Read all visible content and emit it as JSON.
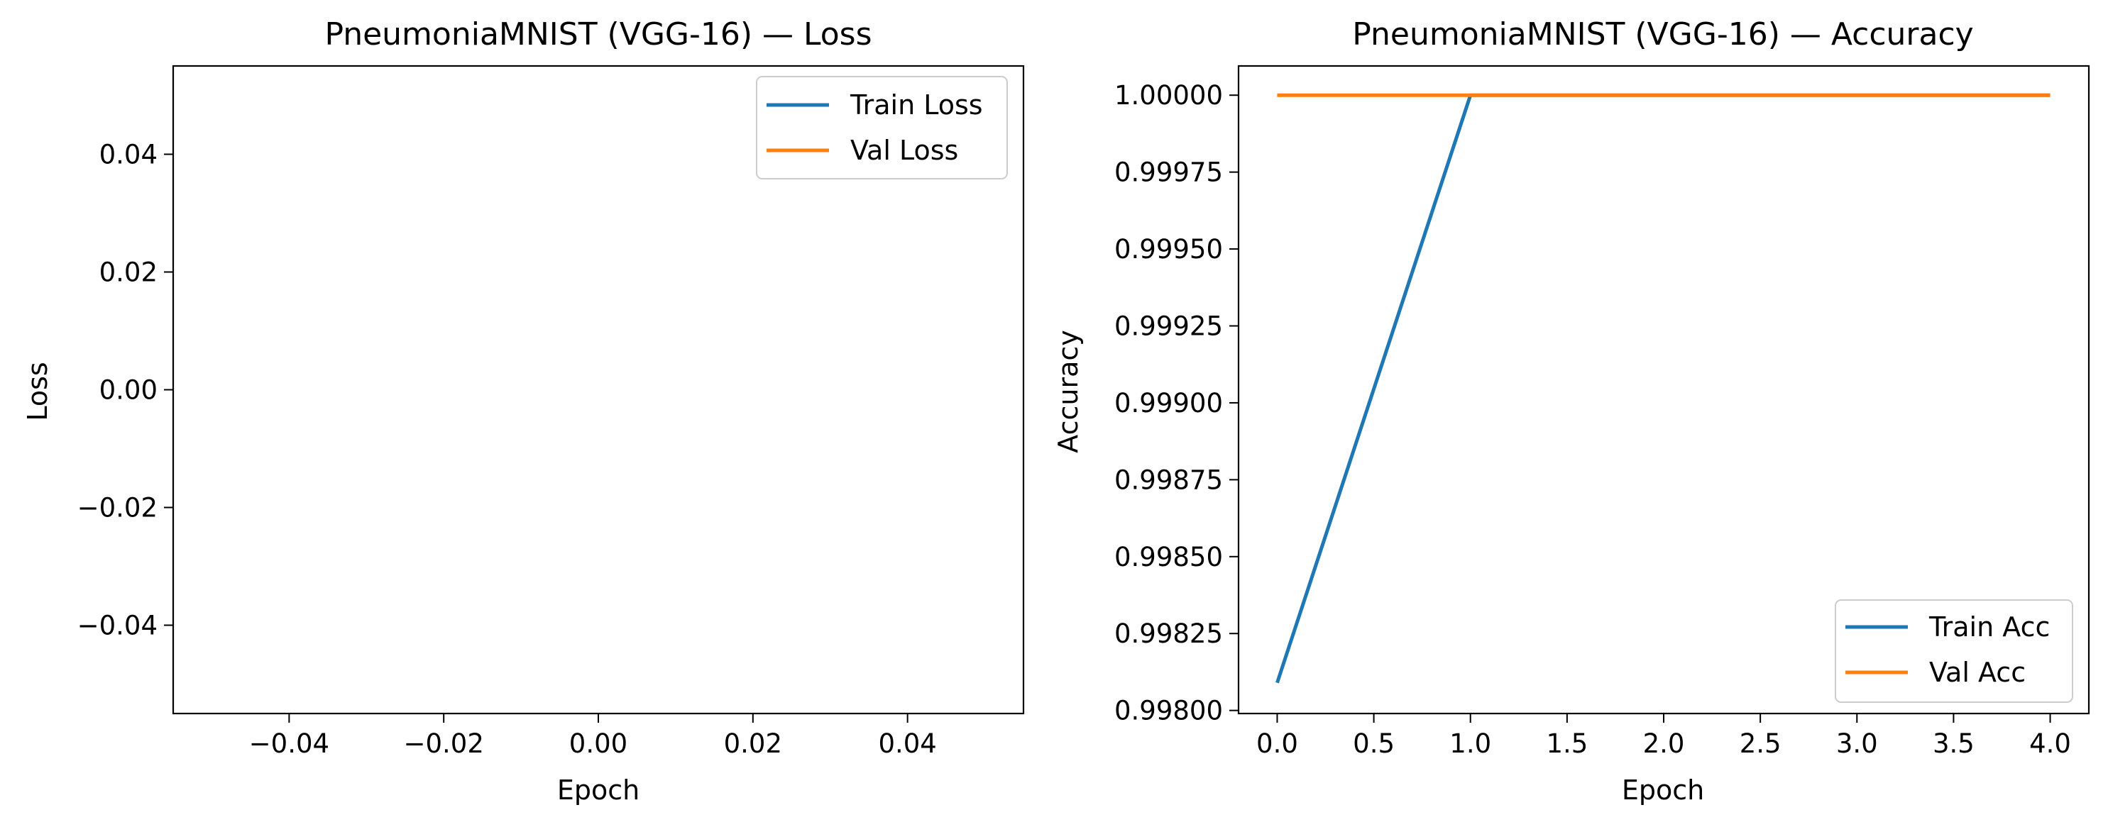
{
  "chart_data": [
    {
      "type": "line",
      "title": "PneumoniaMNIST (VGG-16) — Loss",
      "xlabel": "Epoch",
      "ylabel": "Loss",
      "xlim": [
        -0.055,
        0.055
      ],
      "ylim": [
        -0.055,
        0.055
      ],
      "x_ticks": [
        -0.04,
        -0.02,
        0.0,
        0.02,
        0.04
      ],
      "x_tick_labels": [
        "−0.04",
        "−0.02",
        "0.00",
        "0.02",
        "0.04"
      ],
      "y_ticks": [
        -0.04,
        -0.02,
        0.0,
        0.02,
        0.04
      ],
      "y_tick_labels": [
        "−0.04",
        "−0.02",
        "0.00",
        "0.02",
        "0.04"
      ],
      "legend_position": "upper right",
      "grid": false,
      "series": [
        {
          "name": "Train Loss",
          "color": "#1f77b4",
          "x": [],
          "y": []
        },
        {
          "name": "Val Loss",
          "color": "#ff7f0e",
          "x": [],
          "y": []
        }
      ]
    },
    {
      "type": "line",
      "title": "PneumoniaMNIST (VGG-16) — Accuracy",
      "xlabel": "Epoch",
      "ylabel": "Accuracy",
      "xlim": [
        -0.2,
        4.2
      ],
      "ylim": [
        0.99799,
        1.000095
      ],
      "x_ticks": [
        0.0,
        0.5,
        1.0,
        1.5,
        2.0,
        2.5,
        3.0,
        3.5,
        4.0
      ],
      "x_tick_labels": [
        "0.0",
        "0.5",
        "1.0",
        "1.5",
        "2.0",
        "2.5",
        "3.0",
        "3.5",
        "4.0"
      ],
      "y_ticks": [
        0.998,
        0.99825,
        0.9985,
        0.99875,
        0.999,
        0.99925,
        0.9995,
        0.99975,
        1.0
      ],
      "y_tick_labels": [
        "0.99800",
        "0.99825",
        "0.99850",
        "0.99875",
        "0.99900",
        "0.99925",
        "0.99950",
        "0.99975",
        "1.00000"
      ],
      "legend_position": "lower right",
      "grid": false,
      "series": [
        {
          "name": "Train Acc",
          "color": "#1f77b4",
          "x": [
            0,
            1,
            2,
            3,
            4
          ],
          "y": [
            0.99809,
            1.0,
            1.0,
            1.0,
            1.0
          ]
        },
        {
          "name": "Val Acc",
          "color": "#ff7f0e",
          "x": [
            0,
            1,
            2,
            3,
            4
          ],
          "y": [
            1.0,
            1.0,
            1.0,
            1.0,
            1.0
          ]
        }
      ]
    }
  ]
}
